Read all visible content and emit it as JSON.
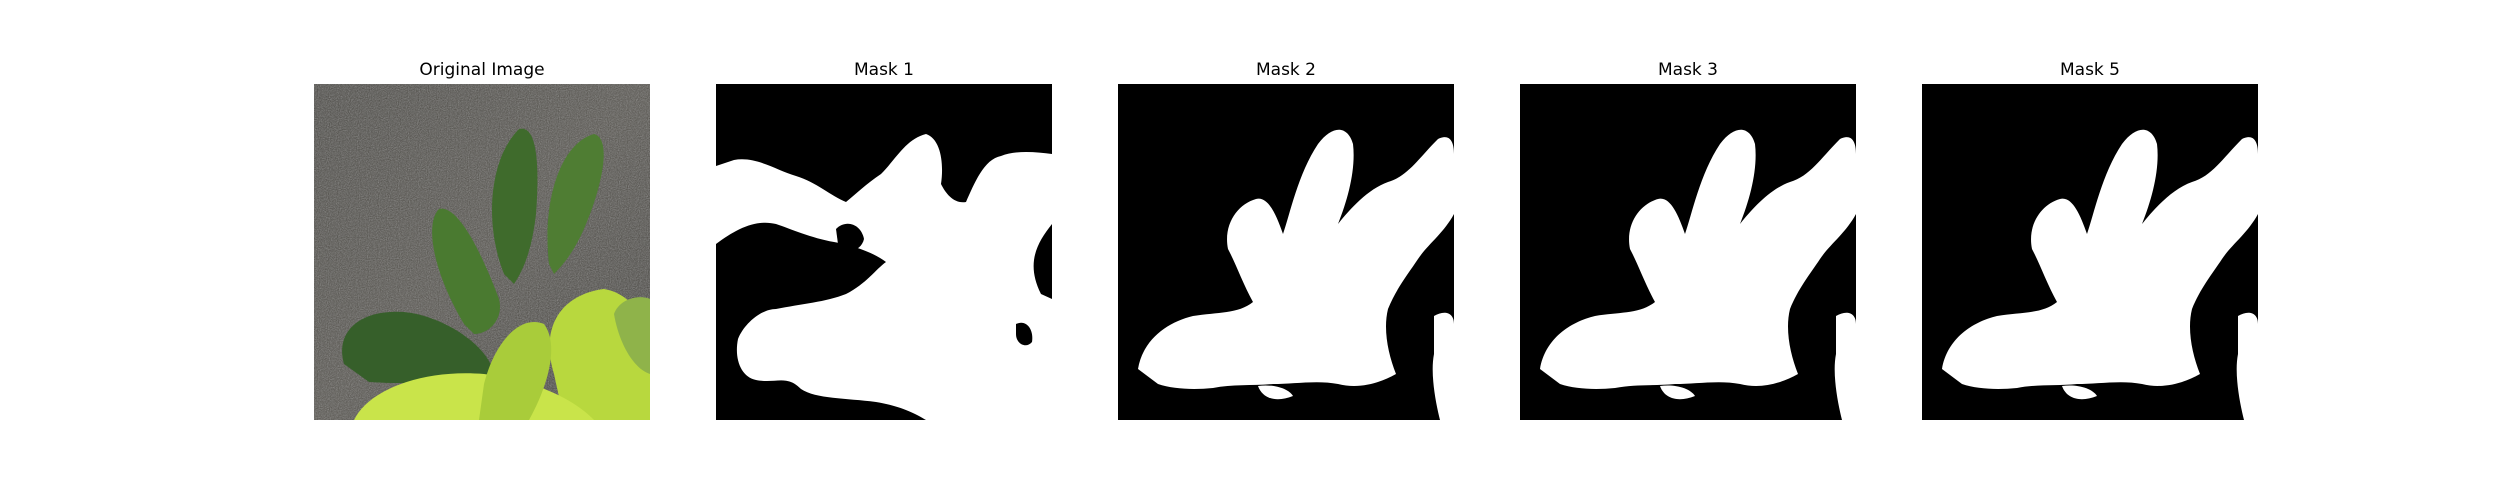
{
  "figure": {
    "panels": [
      {
        "title": "Original Image",
        "kind": "photo"
      },
      {
        "title": "Mask 1",
        "kind": "mask"
      },
      {
        "title": "Mask 2",
        "kind": "mask"
      },
      {
        "title": "Mask 3",
        "kind": "mask"
      },
      {
        "title": "Mask 5",
        "kind": "mask"
      }
    ],
    "colors": {
      "mask_background": "#000000",
      "mask_foreground": "#ffffff",
      "soil": "#4b4942",
      "leaf_dark": "#3f6b2c",
      "leaf_mid": "#6e9a3c",
      "leaf_light": "#c9e44a"
    }
  }
}
